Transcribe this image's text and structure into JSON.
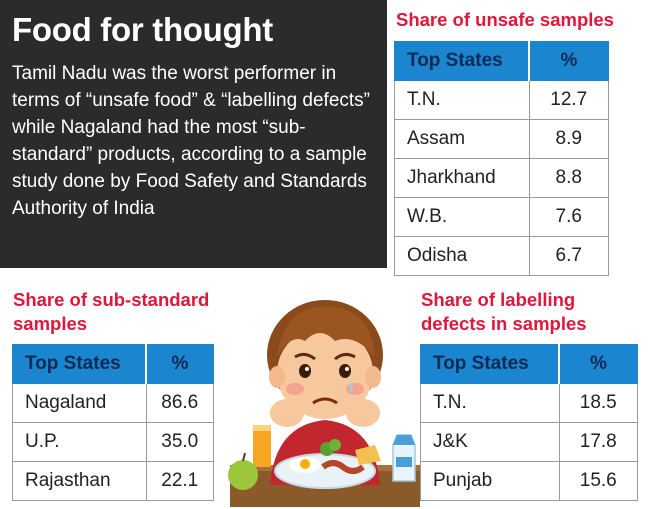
{
  "headline": {
    "title": "Food for thought",
    "body": "Tamil Nadu was the worst performer in terms of “unsafe food” & “labelling defects” while Nagaland had the most “sub-standard” products, according to a sample study done by Food Safety and Standards Authority of India"
  },
  "unsafe": {
    "title": "Share of unsafe samples",
    "col_state": "Top States",
    "col_pct": "%",
    "rows": [
      {
        "state": "T.N.",
        "pct": "12.7"
      },
      {
        "state": "Assam",
        "pct": "8.9"
      },
      {
        "state": "Jharkhand",
        "pct": "8.8"
      },
      {
        "state": "W.B.",
        "pct": "7.6"
      },
      {
        "state": "Odisha",
        "pct": "6.7"
      }
    ]
  },
  "substandard": {
    "title_line1": "Share of sub-standard",
    "title_line2": "samples",
    "col_state": "Top States",
    "col_pct": "%",
    "rows": [
      {
        "state": "Nagaland",
        "pct": "86.6"
      },
      {
        "state": "U.P.",
        "pct": "35.0"
      },
      {
        "state": "Rajasthan",
        "pct": "22.1"
      }
    ]
  },
  "labelling": {
    "title_line1": "Share of labelling",
    "title_line2": "defects in samples",
    "col_state": "Top States",
    "col_pct": "%",
    "rows": [
      {
        "state": "T.N.",
        "pct": "18.5"
      },
      {
        "state": "J&K",
        "pct": "17.8"
      },
      {
        "state": "Punjab",
        "pct": "15.6"
      }
    ]
  },
  "colors": {
    "accent_red": "#e0173a",
    "header_blue": "#1b86cf",
    "dark_panel": "#2b2b2b"
  }
}
